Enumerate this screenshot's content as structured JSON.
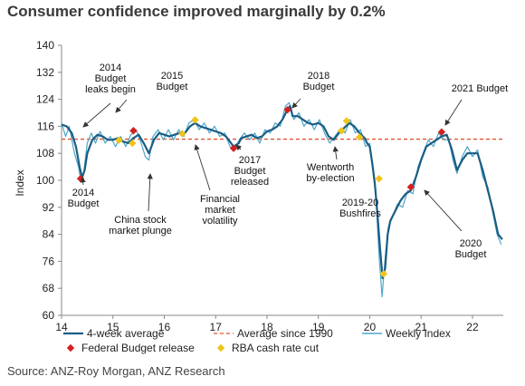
{
  "title": "Consumer confidence improved marginally by 0.2%",
  "source": "Source: ANZ-Roy Morgan, ANZ Research",
  "colors": {
    "avg4w": "#1a5d85",
    "weekly": "#4fa7c9",
    "avg1990": "#e0542f",
    "budget": "#d62020",
    "rba": "#f0c419"
  },
  "chart_data": {
    "type": "line",
    "ylabel": "Index",
    "xlabel": "",
    "ylim": [
      60,
      140
    ],
    "yticks": [
      60,
      68,
      76,
      84,
      92,
      100,
      108,
      116,
      124,
      132,
      140
    ],
    "xlim": [
      14,
      22.6
    ],
    "xticks": [
      14,
      15,
      16,
      17,
      18,
      19,
      20,
      21,
      22
    ],
    "xtick_labels": [
      "14",
      "15",
      "16",
      "17",
      "18",
      "19",
      "20",
      "21",
      "22"
    ],
    "average_since_1990": 112.2,
    "series": [
      {
        "name": "4-week average",
        "points": [
          [
            14.0,
            116.5
          ],
          [
            14.1,
            116
          ],
          [
            14.2,
            114
          ],
          [
            14.28,
            110
          ],
          [
            14.35,
            104
          ],
          [
            14.4,
            100.8
          ],
          [
            14.45,
            103
          ],
          [
            14.5,
            108
          ],
          [
            14.6,
            112
          ],
          [
            14.7,
            113.5
          ],
          [
            14.8,
            113
          ],
          [
            14.9,
            112
          ],
          [
            15.0,
            112
          ],
          [
            15.1,
            112.5
          ],
          [
            15.2,
            111.5
          ],
          [
            15.3,
            111
          ],
          [
            15.4,
            112.5
          ],
          [
            15.5,
            113.5
          ],
          [
            15.6,
            111
          ],
          [
            15.7,
            108
          ],
          [
            15.8,
            112
          ],
          [
            15.9,
            114
          ],
          [
            16.0,
            113.5
          ],
          [
            16.1,
            113
          ],
          [
            16.2,
            113.5
          ],
          [
            16.3,
            114
          ],
          [
            16.4,
            114
          ],
          [
            16.5,
            116
          ],
          [
            16.6,
            117
          ],
          [
            16.7,
            116
          ],
          [
            16.8,
            115.5
          ],
          [
            16.9,
            115
          ],
          [
            17.0,
            114.5
          ],
          [
            17.1,
            114
          ],
          [
            17.2,
            113
          ],
          [
            17.3,
            111
          ],
          [
            17.35,
            110
          ],
          [
            17.45,
            111
          ],
          [
            17.5,
            112.5
          ],
          [
            17.6,
            113
          ],
          [
            17.7,
            113.5
          ],
          [
            17.8,
            112.5
          ],
          [
            17.9,
            113
          ],
          [
            18.0,
            114.5
          ],
          [
            18.1,
            115
          ],
          [
            18.2,
            116
          ],
          [
            18.3,
            118
          ],
          [
            18.4,
            121
          ],
          [
            18.45,
            122
          ],
          [
            18.5,
            119
          ],
          [
            18.6,
            119
          ],
          [
            18.7,
            118
          ],
          [
            18.8,
            117
          ],
          [
            18.9,
            116.5
          ],
          [
            19.0,
            117
          ],
          [
            19.1,
            116
          ],
          [
            19.2,
            113
          ],
          [
            19.3,
            112
          ],
          [
            19.4,
            114
          ],
          [
            19.5,
            115.5
          ],
          [
            19.6,
            117
          ],
          [
            19.7,
            116
          ],
          [
            19.8,
            114
          ],
          [
            19.9,
            112.5
          ],
          [
            19.95,
            111
          ],
          [
            20.0,
            110
          ],
          [
            20.05,
            105
          ],
          [
            20.1,
            99
          ],
          [
            20.15,
            90
          ],
          [
            20.2,
            80
          ],
          [
            20.25,
            71
          ],
          [
            20.3,
            74
          ],
          [
            20.35,
            84
          ],
          [
            20.4,
            88
          ],
          [
            20.5,
            91
          ],
          [
            20.6,
            94
          ],
          [
            20.7,
            96
          ],
          [
            20.8,
            97
          ],
          [
            20.9,
            101
          ],
          [
            21.0,
            106
          ],
          [
            21.1,
            110
          ],
          [
            21.2,
            111
          ],
          [
            21.3,
            112
          ],
          [
            21.4,
            113
          ],
          [
            21.5,
            113.5
          ],
          [
            21.6,
            109
          ],
          [
            21.7,
            103
          ],
          [
            21.8,
            106
          ],
          [
            21.9,
            108
          ],
          [
            22.0,
            108
          ],
          [
            22.1,
            108
          ],
          [
            22.2,
            103
          ],
          [
            22.3,
            97
          ],
          [
            22.4,
            91
          ],
          [
            22.5,
            84
          ],
          [
            22.58,
            82.5
          ]
        ]
      },
      {
        "name": "Weekly Index",
        "points": [
          [
            14.0,
            117
          ],
          [
            14.08,
            113
          ],
          [
            14.15,
            116
          ],
          [
            14.25,
            108
          ],
          [
            14.33,
            104
          ],
          [
            14.38,
            99.5
          ],
          [
            14.43,
            102
          ],
          [
            14.5,
            111
          ],
          [
            14.58,
            114
          ],
          [
            14.66,
            111
          ],
          [
            14.75,
            114.5
          ],
          [
            14.85,
            111
          ],
          [
            14.95,
            113
          ],
          [
            15.05,
            110
          ],
          [
            15.15,
            113
          ],
          [
            15.25,
            110
          ],
          [
            15.35,
            113.5
          ],
          [
            15.45,
            115
          ],
          [
            15.55,
            111
          ],
          [
            15.63,
            107
          ],
          [
            15.7,
            106
          ],
          [
            15.78,
            113
          ],
          [
            15.88,
            115
          ],
          [
            15.98,
            112
          ],
          [
            16.08,
            115
          ],
          [
            16.18,
            112
          ],
          [
            16.28,
            115
          ],
          [
            16.38,
            113
          ],
          [
            16.48,
            117
          ],
          [
            16.58,
            118
          ],
          [
            16.68,
            115
          ],
          [
            16.78,
            117
          ],
          [
            16.88,
            114
          ],
          [
            16.98,
            116
          ],
          [
            17.08,
            113
          ],
          [
            17.18,
            114
          ],
          [
            17.28,
            110
          ],
          [
            17.36,
            109
          ],
          [
            17.46,
            112
          ],
          [
            17.56,
            114
          ],
          [
            17.66,
            112
          ],
          [
            17.76,
            114
          ],
          [
            17.86,
            111
          ],
          [
            17.96,
            115
          ],
          [
            18.06,
            114
          ],
          [
            18.16,
            117
          ],
          [
            18.26,
            116
          ],
          [
            18.36,
            122
          ],
          [
            18.43,
            123
          ],
          [
            18.52,
            118
          ],
          [
            18.62,
            120
          ],
          [
            18.72,
            116
          ],
          [
            18.82,
            118
          ],
          [
            18.92,
            115
          ],
          [
            19.02,
            118
          ],
          [
            19.12,
            114
          ],
          [
            19.22,
            111
          ],
          [
            19.32,
            113
          ],
          [
            19.42,
            115
          ],
          [
            19.52,
            114
          ],
          [
            19.62,
            118
          ],
          [
            19.72,
            114
          ],
          [
            19.82,
            115
          ],
          [
            19.92,
            110
          ],
          [
            20.0,
            111
          ],
          [
            20.06,
            103
          ],
          [
            20.12,
            95
          ],
          [
            20.18,
            78
          ],
          [
            20.24,
            65.5
          ],
          [
            20.3,
            77
          ],
          [
            20.36,
            86
          ],
          [
            20.44,
            89
          ],
          [
            20.54,
            93
          ],
          [
            20.64,
            92
          ],
          [
            20.74,
            97
          ],
          [
            20.84,
            96
          ],
          [
            20.94,
            104
          ],
          [
            21.04,
            108
          ],
          [
            21.14,
            112
          ],
          [
            21.24,
            110
          ],
          [
            21.34,
            114
          ],
          [
            21.44,
            112
          ],
          [
            21.54,
            112
          ],
          [
            21.62,
            106
          ],
          [
            21.7,
            102
          ],
          [
            21.8,
            107
          ],
          [
            21.9,
            110
          ],
          [
            22.0,
            107
          ],
          [
            22.1,
            109
          ],
          [
            22.2,
            101
          ],
          [
            22.3,
            98
          ],
          [
            22.4,
            90
          ],
          [
            22.48,
            84
          ],
          [
            22.56,
            81
          ]
        ]
      },
      {
        "name": "Federal Budget release",
        "points": [
          [
            14.37,
            100.5
          ],
          [
            15.4,
            114.7
          ],
          [
            17.35,
            109.5
          ],
          [
            18.4,
            120.9
          ],
          [
            20.8,
            98
          ],
          [
            21.4,
            114.3
          ]
        ]
      },
      {
        "name": "RBA cash rate cut",
        "points": [
          [
            15.12,
            111.9
          ],
          [
            15.38,
            111
          ],
          [
            16.35,
            113.8
          ],
          [
            16.6,
            117.9
          ],
          [
            19.45,
            114.7
          ],
          [
            19.55,
            117.6
          ],
          [
            19.8,
            112.8
          ],
          [
            20.18,
            100.5
          ],
          [
            20.27,
            72.3
          ]
        ]
      }
    ],
    "annotations": [
      {
        "text": [
          "2014",
          "Budget",
          "leaks begin"
        ],
        "x": 14.3,
        "y": 116
      },
      {
        "text": [
          "2014",
          "Budget"
        ],
        "x": 14.4,
        "y": 101
      },
      {
        "text": [
          "2015",
          "Budget"
        ],
        "x": 15.3,
        "y": 122.5
      },
      {
        "text": [
          "China stock",
          "market plunge"
        ],
        "x": 15.72,
        "y": 108
      },
      {
        "text": [
          "Financial",
          "market",
          "volatility"
        ],
        "x": 16.7,
        "y": 116
      },
      {
        "text": [
          "2017",
          "Budget",
          "released"
        ],
        "x": 17.35,
        "y": 110
      },
      {
        "text": [
          "2018",
          "Budget"
        ],
        "x": 18.35,
        "y": 121.5
      },
      {
        "text": [
          "Wentworth",
          "by-election"
        ],
        "x": 19.25,
        "y": 111
      },
      {
        "text": [
          "2019-20",
          "Bushfires"
        ],
        "x": 20.0,
        "y": 105
      },
      {
        "text": [
          "2020",
          "Budget"
        ],
        "x": 20.85,
        "y": 99.5
      },
      {
        "text": [
          "2021 Budget"
        ],
        "x": 21.5,
        "y": 116
      }
    ],
    "legend": [
      {
        "label": "4-week average",
        "kind": "line-dark"
      },
      {
        "label": "Average since 1990",
        "kind": "dashed"
      },
      {
        "label": "Weekly Index",
        "kind": "line-light"
      },
      {
        "label": "Federal Budget release",
        "kind": "diamond-red"
      },
      {
        "label": "RBA cash rate cut",
        "kind": "diamond-yellow"
      }
    ]
  }
}
